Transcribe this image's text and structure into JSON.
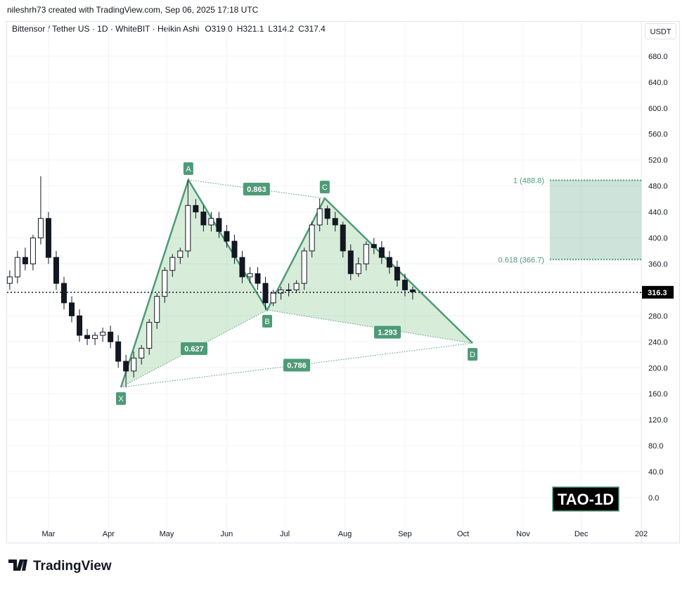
{
  "chart_data": {
    "type": "candlestick",
    "credit": "nileshrh73 created with TradingView.com, Sep 06, 2025 17:18 UTC",
    "title": "Bittensor / Tether US · 1D · WhiteBIT · Heikin Ashi",
    "ohlc_header": [
      "O319.0",
      "H321.1",
      "L314.2",
      "C317.4"
    ],
    "currency": "USDT",
    "symbol_badge": "TAO-1D",
    "brand": "TradingView",
    "up_color": "#ffffff",
    "down_color": "#131722",
    "pattern_color": "#4f9a78",
    "grid": true,
    "xlim": [
      -21.4,
      306
    ],
    "xticks": [
      {
        "value": 0,
        "label": "Mar"
      },
      {
        "value": 31,
        "label": "Apr"
      },
      {
        "value": 61,
        "label": "May"
      },
      {
        "value": 92,
        "label": "Jun"
      },
      {
        "value": 122,
        "label": "Jul"
      },
      {
        "value": 153,
        "label": "Aug"
      },
      {
        "value": 184,
        "label": "Sep"
      },
      {
        "value": 214,
        "label": "Oct"
      },
      {
        "value": 245,
        "label": "Nov"
      },
      {
        "value": 275,
        "label": "Dec"
      },
      {
        "value": 306,
        "label": "202"
      }
    ],
    "ylim": [
      -69.3,
      734
    ],
    "yticks": [
      {
        "value": 0,
        "label": "0.0"
      },
      {
        "value": 40,
        "label": "40.0"
      },
      {
        "value": 80,
        "label": "80.0"
      },
      {
        "value": 120,
        "label": "120.0"
      },
      {
        "value": 160,
        "label": "160.0"
      },
      {
        "value": 200,
        "label": "200.0"
      },
      {
        "value": 240,
        "label": "240.0"
      },
      {
        "value": 280,
        "label": "280.0"
      },
      {
        "value": 320,
        "label": "320.0"
      },
      {
        "value": 360,
        "label": "360.0"
      },
      {
        "value": 400,
        "label": "400.0"
      },
      {
        "value": 440,
        "label": "440.0"
      },
      {
        "value": 480,
        "label": "480.0"
      },
      {
        "value": 520,
        "label": "520.0"
      },
      {
        "value": 560,
        "label": "560.0"
      },
      {
        "value": 600,
        "label": "600.0"
      },
      {
        "value": 640,
        "label": "640.0"
      },
      {
        "value": 680,
        "label": "680.0"
      }
    ],
    "x": [
      -20,
      -16,
      -12,
      -8,
      -4,
      0,
      4,
      8,
      12,
      16,
      20,
      24,
      28,
      32,
      36,
      40,
      44,
      48,
      52,
      56,
      60,
      64,
      68,
      72,
      76,
      80,
      84,
      88,
      92,
      96,
      100,
      104,
      108,
      112,
      116,
      120,
      124,
      128,
      132,
      136,
      140,
      144,
      148,
      152,
      156,
      160,
      164,
      168,
      172,
      176,
      180,
      184,
      188
    ],
    "open": [
      330,
      340,
      370,
      360,
      400,
      430,
      370,
      330,
      300,
      280,
      250,
      245,
      250,
      255,
      240,
      210,
      195,
      215,
      230,
      270,
      310,
      350,
      370,
      380,
      450,
      440,
      420,
      430,
      410,
      395,
      370,
      340,
      345,
      330,
      300,
      315,
      320,
      320,
      330,
      380,
      420,
      445,
      430,
      420,
      380,
      345,
      360,
      390,
      385,
      370,
      355,
      335,
      320
    ],
    "high": [
      350,
      380,
      385,
      405,
      495,
      440,
      380,
      340,
      310,
      290,
      260,
      255,
      262,
      265,
      250,
      220,
      225,
      235,
      275,
      315,
      355,
      375,
      385,
      489,
      460,
      450,
      440,
      440,
      420,
      405,
      380,
      355,
      355,
      340,
      320,
      325,
      330,
      335,
      385,
      425,
      461,
      450,
      440,
      425,
      390,
      370,
      395,
      400,
      395,
      380,
      365,
      345,
      325
    ],
    "low": [
      320,
      330,
      350,
      350,
      390,
      360,
      320,
      290,
      270,
      240,
      235,
      235,
      240,
      230,
      200,
      170,
      185,
      205,
      220,
      260,
      300,
      340,
      360,
      370,
      430,
      410,
      410,
      400,
      385,
      360,
      330,
      330,
      320,
      289,
      295,
      305,
      310,
      315,
      320,
      370,
      410,
      420,
      410,
      370,
      335,
      340,
      350,
      375,
      360,
      345,
      325,
      310,
      305
    ],
    "close": [
      340,
      370,
      360,
      400,
      430,
      370,
      330,
      300,
      280,
      250,
      245,
      250,
      255,
      240,
      210,
      195,
      215,
      230,
      270,
      310,
      350,
      370,
      380,
      450,
      440,
      420,
      430,
      410,
      395,
      370,
      340,
      345,
      330,
      300,
      315,
      320,
      320,
      330,
      380,
      420,
      445,
      430,
      420,
      380,
      345,
      360,
      390,
      385,
      370,
      355,
      335,
      320,
      317
    ],
    "last_price": {
      "value": 316.3,
      "label": "316.3"
    },
    "pattern": {
      "points": [
        {
          "label": "X",
          "x": 37.4,
          "y": 170
        },
        {
          "label": "A",
          "x": 72.2,
          "y": 489.4
        },
        {
          "label": "B",
          "x": 112.9,
          "y": 289
        },
        {
          "label": "C",
          "x": 142.6,
          "y": 461
        },
        {
          "label": "D",
          "x": 218.9,
          "y": 238
        }
      ],
      "ratios": [
        "0.627",
        "0.863",
        "1.293",
        "0.786"
      ]
    },
    "fib_zone": {
      "x_start": 258.8,
      "levels": [
        {
          "value": 488.8,
          "label": "1 (488.8)"
        },
        {
          "value": 366.7,
          "label": "0.618 (366.7)"
        }
      ]
    }
  }
}
